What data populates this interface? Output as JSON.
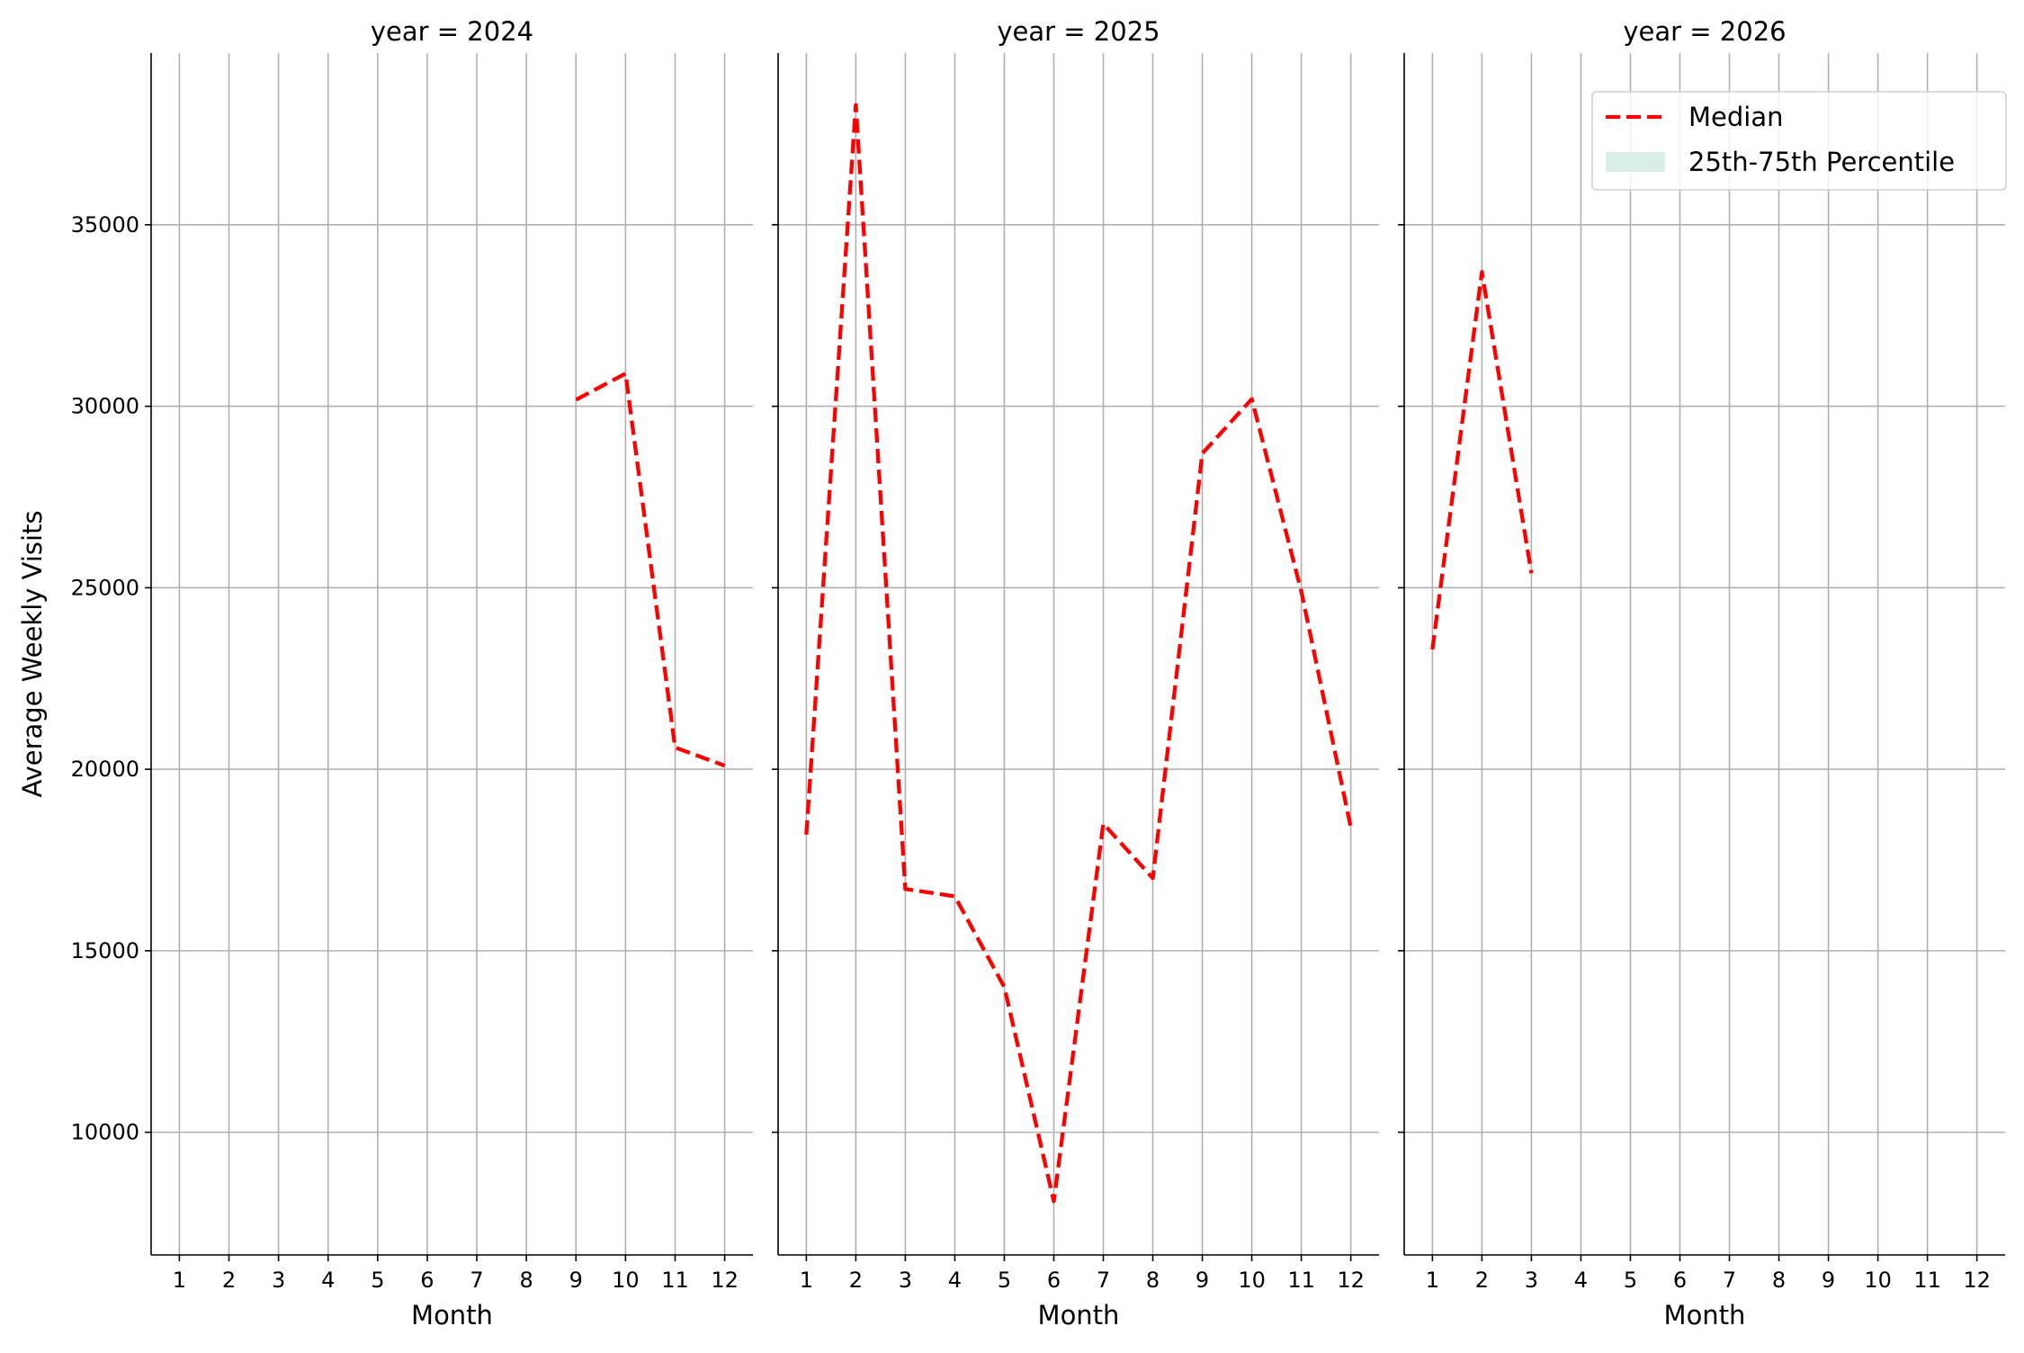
{
  "chart_data": {
    "type": "line",
    "ylabel": "Average Weekly Visits",
    "ylim": [
      6620,
      39730
    ],
    "yticks": [
      10000,
      15000,
      20000,
      25000,
      30000,
      35000
    ],
    "xticks": [
      1,
      2,
      3,
      4,
      5,
      6,
      7,
      8,
      9,
      10,
      11,
      12
    ],
    "xlim": [
      0.43,
      12.57
    ],
    "grid": true,
    "legend": {
      "placement": "top-right",
      "entries": [
        {
          "label": "Median",
          "color": "#ff0000",
          "style": "dashed"
        },
        {
          "label": "25th-75th Percentile",
          "color": "#d9eee8",
          "style": "fill"
        }
      ]
    },
    "panels": [
      {
        "title": "year = 2024",
        "xlabel": "Month",
        "series": [
          {
            "name": "Median",
            "x": [
              9,
              10,
              11,
              12
            ],
            "y": [
              30180,
              30900,
              20600,
              20100
            ]
          }
        ]
      },
      {
        "title": "year = 2025",
        "xlabel": "Month",
        "series": [
          {
            "name": "Median",
            "x": [
              1,
              2,
              3,
              4,
              5,
              6,
              7,
              8,
              9,
              10,
              11,
              12
            ],
            "y": [
              18200,
              38300,
              16700,
              16500,
              14000,
              8100,
              18500,
              17000,
              28700,
              30200,
              24900,
              18400
            ]
          }
        ]
      },
      {
        "title": "year = 2026",
        "xlabel": "Month",
        "series": [
          {
            "name": "Median",
            "x": [
              1,
              2,
              3
            ],
            "y": [
              23300,
              33700,
              25400
            ]
          }
        ]
      }
    ]
  }
}
